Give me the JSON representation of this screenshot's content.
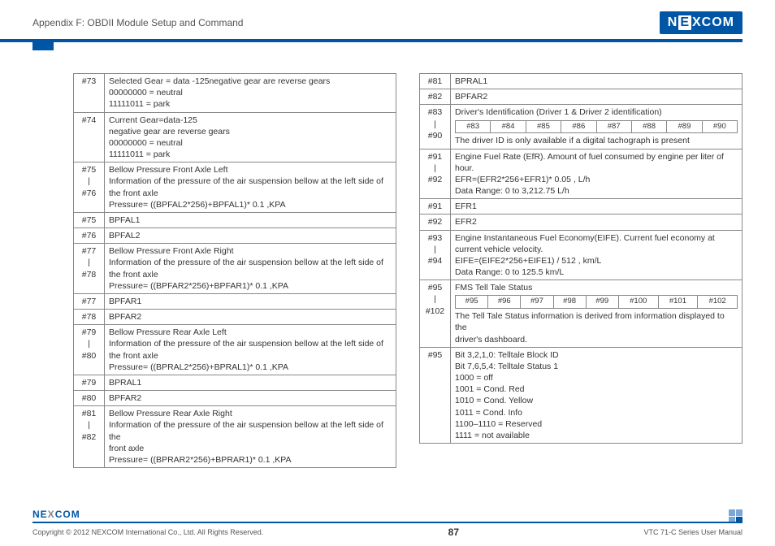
{
  "header": {
    "title": "Appendix F: OBDII Module Setup and Command",
    "logo_text": "NEXCOM"
  },
  "left_table": [
    {
      "idx": "#73",
      "text": "Selected Gear = data -125negative gear are reverse gears\n00000000 = neutral\n11111011 = park"
    },
    {
      "idx": "#74",
      "text": "Current Gear=data-125\nnegative gear are reverse gears\n00000000 = neutral\n11111011 = park"
    },
    {
      "idx": "#75\n|\n#76",
      "text": "Bellow Pressure Front Axle Left\nInformation of the pressure of the air suspension bellow at the left side of the front axle\nPressure= ((BPFAL2*256)+BPFAL1)* 0.1 ,KPA"
    },
    {
      "idx": "#75",
      "text": "BPFAL1"
    },
    {
      "idx": "#76",
      "text": "BPFAL2"
    },
    {
      "idx": "#77\n|\n#78",
      "text": "Bellow Pressure Front Axle Right\nInformation of the pressure of the air suspension bellow at the left side of the front axle\nPressure= ((BPFAR2*256)+BPFAR1)* 0.1 ,KPA"
    },
    {
      "idx": "#77",
      "text": "BPFAR1"
    },
    {
      "idx": "#78",
      "text": "BPFAR2"
    },
    {
      "idx": "#79\n|\n#80",
      "text": "Bellow Pressure Rear Axle Left\nInformation of the pressure of the air suspension bellow at the left side of the front axle\nPressure= ((BPRAL2*256)+BPRAL1)* 0.1 ,KPA"
    },
    {
      "idx": "#79",
      "text": "BPRAL1"
    },
    {
      "idx": "#80",
      "text": "BPFAR2"
    },
    {
      "idx": "#81\n|\n#82",
      "text": "Bellow Pressure Rear Axle Right\nInformation of the pressure of the air suspension bellow at the left side of the\nfront axle\nPressure= ((BPRAR2*256)+BPRAR1)* 0.1 ,KPA"
    }
  ],
  "right_table": {
    "rows_top": [
      {
        "idx": "#81",
        "text": "BPRAL1"
      },
      {
        "idx": "#82",
        "text": "BPFAR2"
      }
    ],
    "row83": {
      "idx": "#83\n|\n#90",
      "line1": "Driver's Identification (Driver 1 & Driver 2 identification)",
      "sub": [
        "#83",
        "#84",
        "#85",
        "#86",
        "#87",
        "#88",
        "#89",
        "#90"
      ],
      "line2": "The driver ID is only available if a digital tachograph is present"
    },
    "row91": {
      "idx": "#91\n|\n#92",
      "text": "Engine Fuel Rate (EfR). Amount of fuel consumed by engine per liter of hour.\nEFR=(EFR2*256+EFR1)* 0.05 , L/h\nData Range: 0 to 3,212.75 L/h"
    },
    "rows_efr": [
      {
        "idx": "#91",
        "text": "EFR1"
      },
      {
        "idx": "#92",
        "text": "EFR2"
      }
    ],
    "row93": {
      "idx": "#93\n|\n#94",
      "text": "Engine Instantaneous Fuel Economy(EIFE). Current fuel economy at current vehicle velocity.\nEIFE=(EIFE2*256+EIFE1) / 512 , km/L\nData Range: 0 to 125.5 km/L"
    },
    "row95": {
      "idx": "#95\n|\n#102",
      "line1": "FMS Tell Tale Status",
      "sub": [
        "#95",
        "#96",
        "#97",
        "#98",
        "#99",
        "#100",
        "#101",
        "#102"
      ],
      "line2": "The Tell Tale Status information is derived from information displayed to the\ndriver's dashboard."
    },
    "row95b": {
      "idx": "#95",
      "text": "Bit 3,2,1,0: Telltale Block ID\nBit 7,6,5,4: Telltale Status 1\n1000 = off\n1001 = Cond. Red\n1010 = Cond. Yellow\n1011 = Cond. Info\n1100–1110 = Reserved\n1111 = not available"
    }
  },
  "footer": {
    "copyright": "Copyright © 2012 NEXCOM International Co., Ltd. All Rights Reserved.",
    "page": "87",
    "manual": "VTC 71-C Series User Manual",
    "logo": "NEXCOM"
  }
}
